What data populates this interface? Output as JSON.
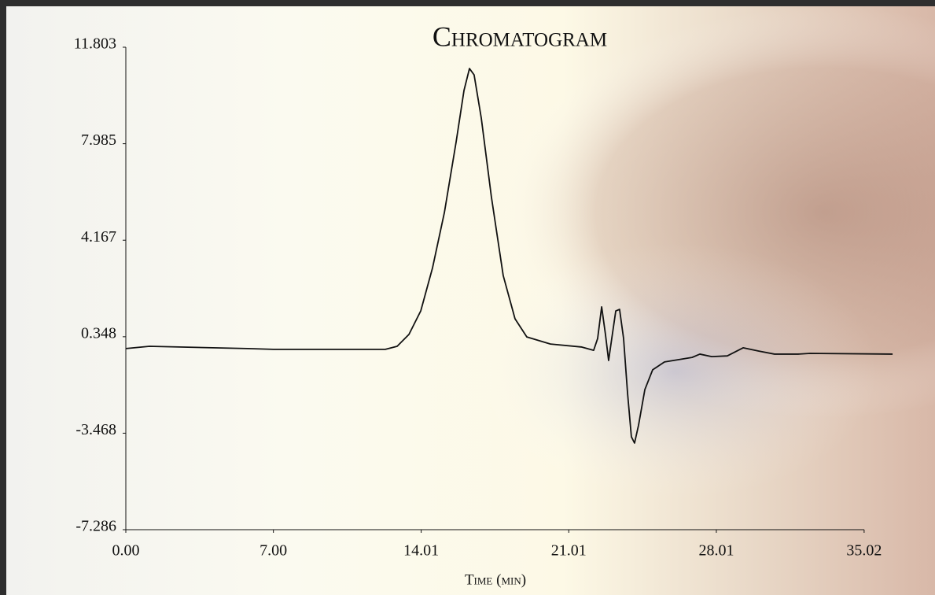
{
  "chart_data": {
    "type": "line",
    "title": "Chromatogram",
    "x_label": "Time (min)",
    "xlim": [
      0,
      36.37
    ],
    "ylim": [
      -7.286,
      11.803
    ],
    "xticks": [
      {
        "value": 0,
        "label": "0.00"
      },
      {
        "value": 7,
        "label": "7.00"
      },
      14.01,
      21.01,
      28.01,
      35.02
    ],
    "yticks": [
      11.803,
      7.985,
      4.167,
      0.348,
      -3.468,
      -7.286
    ],
    "color": "#111111",
    "x": [
      0,
      1.12,
      5.78,
      7.0,
      12.31,
      12.87,
      13.43,
      13.99,
      14.55,
      15.11,
      15.67,
      16.04,
      16.3,
      16.52,
      16.86,
      17.34,
      17.9,
      18.46,
      19.02,
      20.14,
      21.63,
      22.19,
      22.38,
      22.57,
      22.75,
      22.9,
      23.05,
      23.24,
      23.42,
      23.61,
      23.8,
      23.98,
      24.13,
      24.32,
      24.62,
      24.99,
      25.55,
      26.86,
      27.23,
      27.79,
      28.53,
      29.28,
      30.03,
      30.77,
      31.89,
      32.45,
      36.37
    ],
    "values": [
      -0.12,
      -0.03,
      -0.12,
      -0.15,
      -0.15,
      -0.03,
      0.44,
      1.37,
      3.08,
      5.26,
      8.07,
      10.09,
      10.96,
      10.71,
      9.0,
      5.88,
      2.77,
      1.06,
      0.34,
      0.06,
      -0.06,
      -0.19,
      0.28,
      1.53,
      0.44,
      -0.59,
      0.28,
      1.37,
      1.43,
      0.28,
      -1.9,
      -3.61,
      -3.86,
      -3.15,
      -1.74,
      -0.96,
      -0.65,
      -0.47,
      -0.34,
      -0.44,
      -0.41,
      -0.09,
      -0.22,
      -0.34,
      -0.34,
      -0.31,
      -0.34
    ]
  }
}
